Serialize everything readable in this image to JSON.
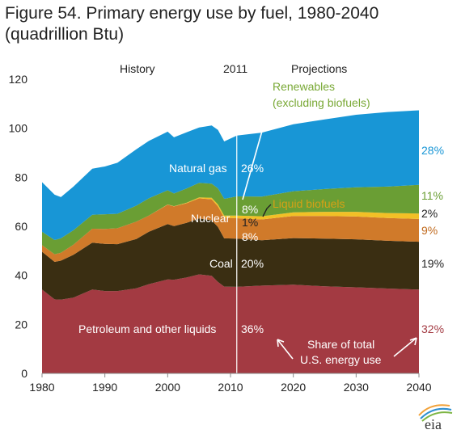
{
  "title": "Figure 54. Primary energy use by fuel, 1980-2040",
  "subtitle": "(quadrillion Btu)",
  "logo_text": "eia",
  "colors": {
    "petroleum": "#A33A42",
    "coal": "#3A2E12",
    "nuclear": "#D07A2A",
    "liquid_biofuels": "#F2C026",
    "renewables": "#6A9E34",
    "natural_gas": "#1896D6",
    "divider": "#ffffff",
    "renewables_text": "#78A834",
    "biofuels_text": "#D4A017",
    "nuclear_text": "#C06A1E",
    "petroleum_text": "#A33A42"
  },
  "chart_data": {
    "type": "area",
    "stacked": true,
    "xlim": [
      1980,
      2040
    ],
    "ylim": [
      0,
      120
    ],
    "grid": false,
    "x_ticks": [
      "1980",
      "1990",
      "2000",
      "2010",
      "2020",
      "2030",
      "2040"
    ],
    "y_ticks": [
      "0",
      "20",
      "40",
      "60",
      "80",
      "100",
      "120"
    ],
    "divider_year": 2011,
    "period_labels": {
      "history": "History",
      "year": "2011",
      "projections": "Projections"
    },
    "x": [
      1980,
      1982,
      1983,
      1985,
      1988,
      1990,
      1992,
      1995,
      1997,
      2000,
      2001,
      2003,
      2005,
      2007,
      2008,
      2009,
      2011,
      2015,
      2020,
      2025,
      2030,
      2035,
      2040
    ],
    "series": [
      {
        "key": "petroleum",
        "values": [
          34.2,
          30.2,
          30.1,
          30.9,
          34.2,
          33.6,
          33.6,
          34.7,
          36.4,
          38.3,
          38.2,
          39.1,
          40.4,
          39.8,
          37.3,
          35.4,
          35.3,
          35.8,
          36.2,
          35.5,
          35.1,
          34.6,
          34.2
        ]
      },
      {
        "key": "coal",
        "values": [
          15.4,
          15.3,
          15.9,
          17.5,
          19.1,
          19.2,
          19.1,
          20.1,
          21.4,
          22.6,
          21.9,
          22.3,
          22.8,
          22.7,
          22.4,
          19.7,
          19.7,
          18.5,
          19.0,
          19.5,
          19.6,
          19.5,
          19.5
        ]
      },
      {
        "key": "nuclear",
        "values": [
          2.7,
          3.1,
          3.2,
          4.1,
          5.7,
          6.1,
          6.5,
          7.1,
          6.6,
          7.9,
          8.0,
          8.0,
          8.2,
          8.5,
          8.4,
          8.4,
          8.3,
          8.5,
          9.0,
          9.2,
          9.3,
          9.3,
          9.3
        ]
      },
      {
        "key": "liquid_biofuels",
        "values": [
          0,
          0,
          0,
          0,
          0,
          0,
          0,
          0,
          0,
          0.1,
          0.1,
          0.2,
          0.4,
          0.6,
          0.8,
          0.9,
          1.1,
          1.3,
          1.5,
          1.7,
          1.9,
          2.0,
          2.2
        ]
      },
      {
        "key": "renewables",
        "values": [
          5.5,
          5.8,
          5.9,
          5.9,
          5.7,
          6.0,
          5.9,
          6.5,
          7.0,
          5.8,
          5.2,
          5.8,
          5.9,
          5.8,
          6.6,
          6.8,
          7.8,
          8.0,
          8.6,
          9.3,
          10.0,
          10.8,
          11.7
        ]
      },
      {
        "key": "natural_gas",
        "values": [
          20.2,
          18.5,
          16.8,
          17.8,
          18.8,
          19.5,
          20.8,
          23.0,
          23.4,
          23.9,
          22.9,
          22.9,
          22.6,
          23.7,
          23.8,
          23.4,
          24.8,
          26.1,
          27.3,
          28.4,
          29.6,
          30.4,
          30.4
        ]
      }
    ],
    "annotations": {
      "natural_gas": "Natural gas",
      "natural_gas_share_2011": "26%",
      "renewables_line1": "Renewables",
      "renewables_line2": "(excluding biofuels)",
      "renewables_share_2011": "8%",
      "liquid_biofuels": "Liquid biofuels",
      "liquid_biofuels_share_2011": "1%",
      "nuclear": "Nuclear",
      "nuclear_share_2011": "8%",
      "coal": "Coal",
      "coal_share_2011": "20%",
      "petroleum": "Petroleum and other liquids",
      "petroleum_share_2011": "36%",
      "share_note_line1": "Share of total",
      "share_note_line2": "U.S. energy use",
      "natural_gas_share_2040": "28%",
      "renewables_share_2040": "11%",
      "liquid_biofuels_share_2040": "2%",
      "nuclear_share_2040": "9%",
      "coal_share_2040": "19%",
      "petroleum_share_2040": "32%"
    }
  }
}
